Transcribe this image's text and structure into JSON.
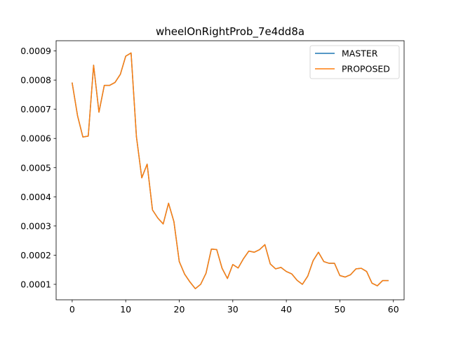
{
  "chart_data": {
    "type": "line",
    "title": "wheelOnRightProb_7e4dd8a",
    "xlabel": "",
    "ylabel": "",
    "xlim": [
      -3.0,
      62.0
    ],
    "ylim": [
      4.7e-05,
      0.000935
    ],
    "x_ticks": [
      0,
      10,
      20,
      30,
      40,
      50,
      60
    ],
    "y_ticks": [
      0.0001,
      0.0002,
      0.0003,
      0.0004,
      0.0005,
      0.0006,
      0.0007,
      0.0008,
      0.0009
    ],
    "y_tick_labels": [
      "0.0001",
      "0.0002",
      "0.0003",
      "0.0004",
      "0.0005",
      "0.0006",
      "0.0007",
      "0.0008",
      "0.0009"
    ],
    "grid": false,
    "legend_position": "top-right",
    "x": [
      0,
      1,
      2,
      3,
      4,
      5,
      6,
      7,
      8,
      9,
      10,
      11,
      12,
      13,
      14,
      15,
      16,
      17,
      18,
      19,
      20,
      21,
      22,
      23,
      24,
      25,
      26,
      27,
      28,
      29,
      30,
      31,
      32,
      33,
      34,
      35,
      36,
      37,
      38,
      39,
      40,
      41,
      42,
      43,
      44,
      45,
      46,
      47,
      48,
      49,
      50,
      51,
      52,
      53,
      54,
      55,
      56,
      57,
      58,
      59
    ],
    "series": [
      {
        "name": "MASTER",
        "color": "#1f77b4",
        "values": [
          0.00079,
          0.000678,
          0.000605,
          0.000608,
          0.000851,
          0.00069,
          0.000782,
          0.000782,
          0.000792,
          0.00082,
          0.000882,
          0.000893,
          0.000606,
          0.000465,
          0.000512,
          0.000355,
          0.000327,
          0.000307,
          0.000378,
          0.000315,
          0.000178,
          0.000135,
          0.000108,
          8.5e-05,
          0.0001,
          0.000138,
          0.000221,
          0.000219,
          0.000155,
          0.00012,
          0.000168,
          0.000156,
          0.000188,
          0.000214,
          0.00021,
          0.000219,
          0.000236,
          0.00017,
          0.000153,
          0.000158,
          0.000144,
          0.000136,
          0.000114,
          0.0001,
          0.000128,
          0.000181,
          0.00021,
          0.000178,
          0.000172,
          0.000172,
          0.00013,
          0.000125,
          0.000133,
          0.000153,
          0.000155,
          0.000144,
          0.000104,
          9.5e-05,
          0.000113,
          0.000113
        ]
      },
      {
        "name": "PROPOSED",
        "color": "#ff7f0e",
        "values": [
          0.00079,
          0.000678,
          0.000605,
          0.000608,
          0.000851,
          0.00069,
          0.000782,
          0.000782,
          0.000792,
          0.00082,
          0.000882,
          0.000893,
          0.000606,
          0.000465,
          0.000512,
          0.000355,
          0.000327,
          0.000307,
          0.000378,
          0.000315,
          0.000178,
          0.000135,
          0.000108,
          8.5e-05,
          0.0001,
          0.000138,
          0.000221,
          0.000219,
          0.000155,
          0.00012,
          0.000168,
          0.000156,
          0.000188,
          0.000214,
          0.00021,
          0.000219,
          0.000236,
          0.00017,
          0.000153,
          0.000158,
          0.000144,
          0.000136,
          0.000114,
          0.0001,
          0.000128,
          0.000181,
          0.00021,
          0.000178,
          0.000172,
          0.000172,
          0.00013,
          0.000125,
          0.000133,
          0.000153,
          0.000155,
          0.000144,
          0.000104,
          9.5e-05,
          0.000113,
          0.000113
        ]
      }
    ]
  }
}
